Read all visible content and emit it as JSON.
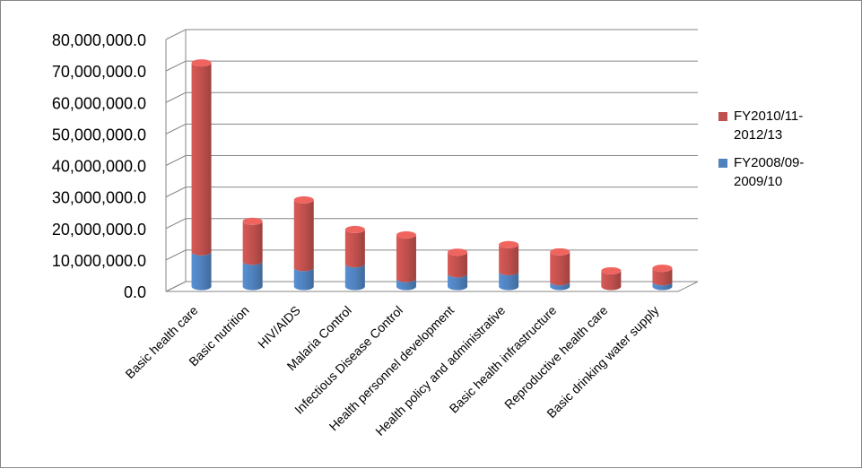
{
  "chart_data": {
    "type": "bar",
    "stacked": true,
    "three_d": true,
    "categories": [
      "Basic health care",
      "Basic nutrition",
      "HIV/AIDS",
      "Malaria Control",
      "Infectious Disease Control",
      "Health personnel development",
      "Health policy and administrative",
      "Basic health infrastructure",
      "Reproductive health care",
      "Basic drinking water supply"
    ],
    "series": [
      {
        "name": "FY2008/09-2009/10",
        "color": "#4F81BD",
        "values": [
          11000000,
          8000000,
          6000000,
          7200000,
          2500000,
          4000000,
          4700000,
          1500000,
          0,
          1500000
        ]
      },
      {
        "name": "FY2010/11-2012/13",
        "color": "#C0504D",
        "values": [
          60000000,
          12700000,
          21500000,
          10900000,
          13900000,
          6900000,
          8600000,
          9500000,
          5000000,
          4300000
        ]
      }
    ],
    "ylim": [
      0,
      80000000
    ],
    "yticks": [
      "0.0",
      "10,000,000.0",
      "20,000,000.0",
      "30,000,000.0",
      "40,000,000.0",
      "50,000,000.0",
      "60,000,000.0",
      "70,000,000.0",
      "80,000,000.0"
    ],
    "grid": true,
    "legend_position": "right",
    "title": "",
    "xlabel": "",
    "ylabel": ""
  }
}
